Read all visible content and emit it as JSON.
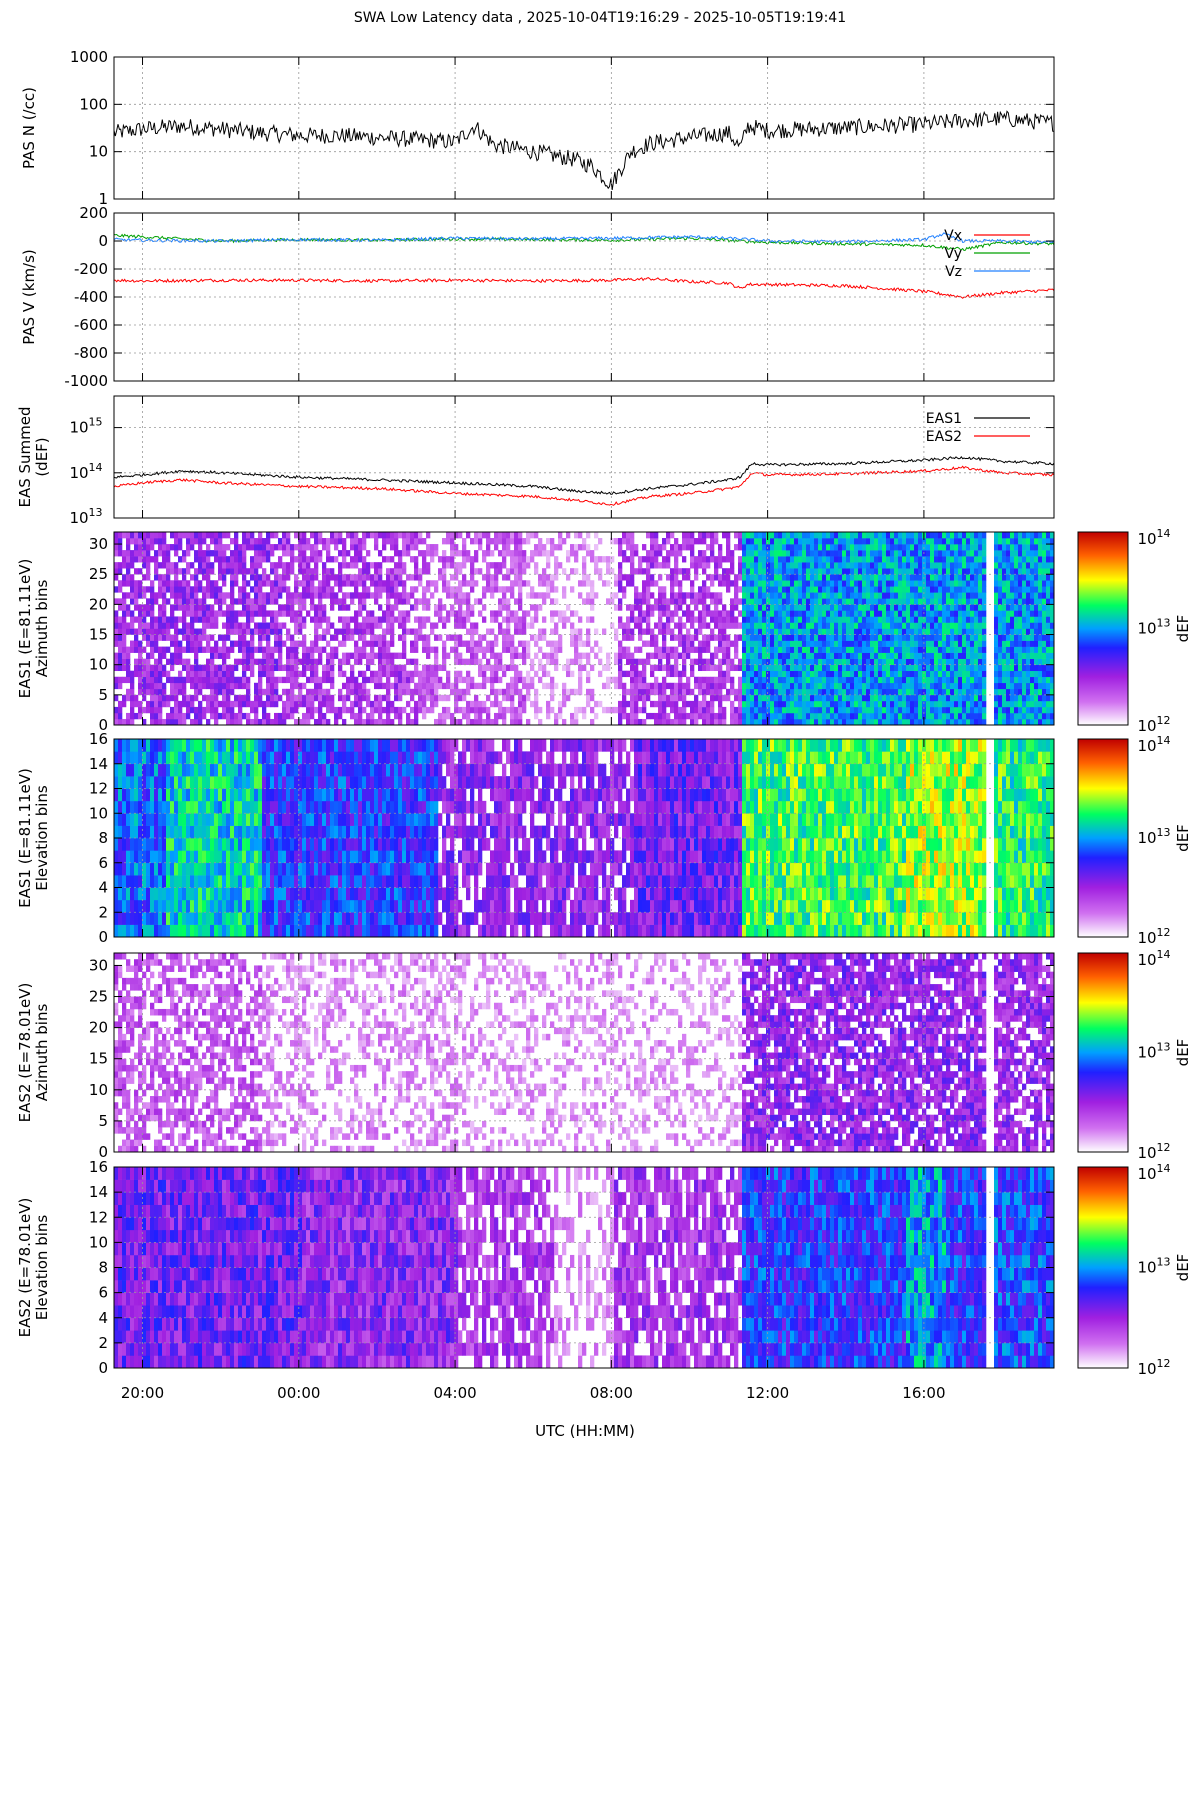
{
  "title": "SWA Low Latency data ,  2025-10-04T19:16:29 - 2025-10-05T19:19:41",
  "xlabel": "UTC (HH:MM)",
  "x_ticks": [
    "20:00",
    "00:00",
    "04:00",
    "08:00",
    "12:00",
    "16:00"
  ],
  "x_tick_hours": [
    20,
    24,
    28,
    32,
    36,
    40
  ],
  "x_range_hours": [
    19.27,
    43.33
  ],
  "chart_data": [
    {
      "id": "pas_n",
      "type": "line",
      "ylabel": "PAS N (/cc)",
      "yscale": "log",
      "ylim": [
        1,
        1000
      ],
      "y_ticks": [
        "1000",
        "100",
        "10",
        "1"
      ],
      "series": [
        {
          "color": "#000000",
          "x": [
            19.3,
            20.0,
            21.0,
            22.0,
            23.0,
            24.0,
            25.0,
            26.0,
            27.0,
            28.0,
            28.5,
            29.0,
            30.0,
            31.0,
            31.5,
            32.0,
            32.5,
            33.0,
            34.0,
            35.0,
            35.3,
            35.5,
            36.0,
            37.0,
            38.0,
            39.0,
            40.0,
            41.0,
            42.0,
            43.3
          ],
          "y": [
            25,
            30,
            35,
            30,
            25,
            22,
            22,
            20,
            18,
            16,
            35,
            14,
            10,
            7,
            5,
            2,
            10,
            15,
            20,
            25,
            12,
            35,
            28,
            30,
            32,
            35,
            38,
            45,
            50,
            40
          ]
        }
      ]
    },
    {
      "id": "pas_v",
      "type": "line",
      "ylabel": "PAS V (km/s)",
      "ylim": [
        -1000,
        200
      ],
      "y_ticks": [
        "200",
        "0",
        "-200",
        "-400",
        "-600",
        "-800",
        "-1000"
      ],
      "legend_position": "top-right",
      "series": [
        {
          "name": "Vx",
          "color": "#ff0000",
          "x": [
            19.3,
            20,
            22,
            24,
            26,
            28,
            30,
            32,
            33,
            34,
            35,
            35.3,
            35.5,
            36,
            38,
            40,
            41,
            42,
            43.3
          ],
          "y": [
            -280,
            -285,
            -280,
            -280,
            -285,
            -280,
            -285,
            -280,
            -270,
            -290,
            -300,
            -340,
            -310,
            -310,
            -320,
            -360,
            -400,
            -370,
            -350
          ]
        },
        {
          "name": "Vy",
          "color": "#00a000",
          "x": [
            19.3,
            20,
            22,
            24,
            26,
            28,
            30,
            32,
            34,
            35.3,
            36,
            38,
            40,
            41,
            42,
            43.3
          ],
          "y": [
            40,
            30,
            0,
            10,
            5,
            15,
            10,
            5,
            20,
            0,
            -10,
            -20,
            -30,
            -60,
            -10,
            -20
          ]
        },
        {
          "name": "Vz",
          "color": "#2080ff",
          "x": [
            19.3,
            20,
            22,
            24,
            26,
            28,
            30,
            32,
            34,
            35.3,
            36,
            38,
            40,
            40.5,
            41,
            42,
            43.3
          ],
          "y": [
            10,
            5,
            0,
            10,
            5,
            20,
            15,
            20,
            30,
            15,
            0,
            -5,
            10,
            50,
            0,
            0,
            -10
          ]
        }
      ]
    },
    {
      "id": "eas_summed",
      "type": "line",
      "ylabel": "EAS Summed (dEF)",
      "yscale": "log",
      "ylim": [
        10000000000000.0,
        5000000000000000.0
      ],
      "y_ticks": [
        {
          "base": "10",
          "exp": "15",
          "value": 1000000000000000.0
        },
        {
          "base": "10",
          "exp": "14",
          "value": 100000000000000.0
        },
        {
          "base": "10",
          "exp": "13",
          "value": 10000000000000.0
        }
      ],
      "legend_position": "top-right",
      "series": [
        {
          "name": "EAS1",
          "color": "#000000",
          "x": [
            19.3,
            20,
            21,
            22,
            24,
            26,
            28,
            30,
            31,
            32,
            33,
            34,
            35,
            35.3,
            35.6,
            36,
            38,
            40,
            41,
            42,
            43.3
          ],
          "y": [
            80000000000000.0,
            90000000000000.0,
            110000000000000.0,
            100000000000000.0,
            80000000000000.0,
            70000000000000.0,
            60000000000000.0,
            50000000000000.0,
            40000000000000.0,
            35000000000000.0,
            45000000000000.0,
            55000000000000.0,
            70000000000000.0,
            80000000000000.0,
            160000000000000.0,
            150000000000000.0,
            160000000000000.0,
            190000000000000.0,
            220000000000000.0,
            180000000000000.0,
            160000000000000.0
          ]
        },
        {
          "name": "EAS2",
          "color": "#ff0000",
          "x": [
            19.3,
            20,
            21,
            22,
            24,
            26,
            28,
            30,
            31,
            32,
            33,
            34,
            35,
            35.3,
            35.6,
            36,
            38,
            40,
            41,
            42,
            43.3
          ],
          "y": [
            50000000000000.0,
            60000000000000.0,
            70000000000000.0,
            60000000000000.0,
            50000000000000.0,
            45000000000000.0,
            35000000000000.0,
            30000000000000.0,
            25000000000000.0,
            20000000000000.0,
            30000000000000.0,
            35000000000000.0,
            45000000000000.0,
            50000000000000.0,
            100000000000000.0,
            90000000000000.0,
            95000000000000.0,
            110000000000000.0,
            130000000000000.0,
            100000000000000.0,
            90000000000000.0
          ]
        }
      ]
    },
    {
      "id": "eas1_azimuth",
      "type": "heatmap",
      "ylabel": "EAS1 (E=81.11eV) Azimuth bins",
      "ylim": [
        0,
        32
      ],
      "y_ticks": [
        "30",
        "25",
        "20",
        "15",
        "10",
        "5",
        "0"
      ],
      "colorbar": {
        "label": "dEF",
        "min": {
          "base": "10",
          "exp": "12"
        },
        "max": {
          "base": "10",
          "exp": "14"
        },
        "mid": {
          "base": "10",
          "exp": "13"
        }
      },
      "time_segments": [
        {
          "start": 19.27,
          "end": 23.5,
          "level": 0.22
        },
        {
          "start": 23.5,
          "end": 27.0,
          "level": 0.18
        },
        {
          "start": 27.0,
          "end": 29.8,
          "level": 0.12
        },
        {
          "start": 29.8,
          "end": 31.5,
          "level": 0.04
        },
        {
          "start": 31.5,
          "end": 32.1,
          "level": 0.0
        },
        {
          "start": 32.1,
          "end": 35.3,
          "level": 0.18
        },
        {
          "start": 35.3,
          "end": 41.5,
          "level": 0.5
        },
        {
          "start": 41.5,
          "end": 41.7,
          "level": null
        },
        {
          "start": 41.7,
          "end": 43.33,
          "level": 0.5
        }
      ]
    },
    {
      "id": "eas1_elevation",
      "type": "heatmap",
      "ylabel": "EAS1 (E=81.11eV) Elevation bins",
      "ylim": [
        0,
        16
      ],
      "y_ticks": [
        "16",
        "14",
        "12",
        "10",
        "8",
        "6",
        "4",
        "2",
        "0"
      ],
      "colorbar": {
        "label": "dEF",
        "min": {
          "base": "10",
          "exp": "12"
        },
        "max": {
          "base": "10",
          "exp": "14"
        },
        "mid": {
          "base": "10",
          "exp": "13"
        }
      },
      "time_segments": [
        {
          "start": 19.27,
          "end": 20.5,
          "level": 0.45
        },
        {
          "start": 20.5,
          "end": 23.0,
          "level": 0.56
        },
        {
          "start": 23.0,
          "end": 27.5,
          "level": 0.4
        },
        {
          "start": 27.5,
          "end": 32.5,
          "level": 0.24
        },
        {
          "start": 32.5,
          "end": 35.3,
          "level": 0.3
        },
        {
          "start": 35.3,
          "end": 39.5,
          "level": 0.64
        },
        {
          "start": 39.5,
          "end": 41.5,
          "level": 0.7
        },
        {
          "start": 41.5,
          "end": 41.7,
          "level": null
        },
        {
          "start": 41.7,
          "end": 43.33,
          "level": 0.62
        }
      ]
    },
    {
      "id": "eas2_azimuth",
      "type": "heatmap",
      "ylabel": "EAS2 (E=78.01eV) Azimuth bins",
      "ylim": [
        0,
        32
      ],
      "y_ticks": [
        "30",
        "25",
        "20",
        "15",
        "10",
        "5",
        "0"
      ],
      "colorbar": {
        "label": "dEF",
        "min": {
          "base": "10",
          "exp": "12"
        },
        "max": {
          "base": "10",
          "exp": "14"
        },
        "mid": {
          "base": "10",
          "exp": "13"
        }
      },
      "time_segments": [
        {
          "start": 19.27,
          "end": 23.0,
          "level": 0.12
        },
        {
          "start": 23.0,
          "end": 28.0,
          "level": 0.04
        },
        {
          "start": 28.0,
          "end": 35.3,
          "level": 0.02
        },
        {
          "start": 35.3,
          "end": 41.5,
          "level": 0.24
        },
        {
          "start": 41.5,
          "end": 41.7,
          "level": null
        },
        {
          "start": 41.7,
          "end": 43.33,
          "level": 0.22
        }
      ]
    },
    {
      "id": "eas2_elevation",
      "type": "heatmap",
      "ylabel": "EAS2 (E=78.01eV) Elevation bins",
      "ylim": [
        0,
        16
      ],
      "y_ticks": [
        "16",
        "14",
        "12",
        "10",
        "8",
        "6",
        "4",
        "2",
        "0"
      ],
      "colorbar": {
        "label": "dEF",
        "min": {
          "base": "10",
          "exp": "12"
        },
        "max": {
          "base": "10",
          "exp": "14"
        },
        "mid": {
          "base": "10",
          "exp": "13"
        }
      },
      "time_segments": [
        {
          "start": 19.27,
          "end": 24.0,
          "level": 0.3
        },
        {
          "start": 24.0,
          "end": 28.0,
          "level": 0.26
        },
        {
          "start": 28.0,
          "end": 30.5,
          "level": 0.18
        },
        {
          "start": 30.5,
          "end": 32.0,
          "level": 0.04
        },
        {
          "start": 32.0,
          "end": 35.3,
          "level": 0.2
        },
        {
          "start": 35.3,
          "end": 39.5,
          "level": 0.4
        },
        {
          "start": 39.5,
          "end": 40.5,
          "level": 0.5
        },
        {
          "start": 40.5,
          "end": 41.5,
          "level": 0.4
        },
        {
          "start": 41.5,
          "end": 41.7,
          "level": null
        },
        {
          "start": 41.7,
          "end": 43.33,
          "level": 0.42
        }
      ]
    }
  ]
}
